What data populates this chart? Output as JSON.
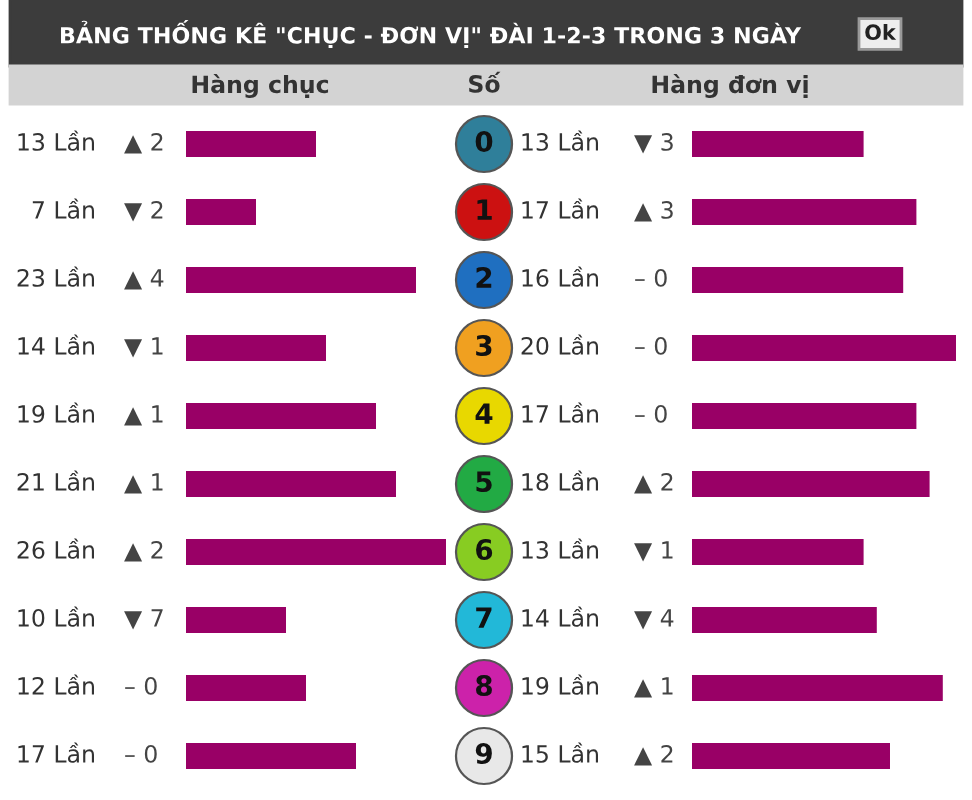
{
  "chart_data": [
    {
      "type": "bar",
      "orientation": "horizontal",
      "title": "BẢNG THỐNG KÊ \"CHỤC - ĐƠN VỊ\" ĐÀI 1-2-3 TRONG 3 NGÀY",
      "subtitle": "Hàng chục",
      "ylabel": "Số",
      "tick_labels": "y",
      "categories": [
        "0",
        "1",
        "2",
        "3",
        "4",
        "5",
        "6",
        "7",
        "8",
        "9"
      ],
      "values": [
        13,
        7,
        23,
        14,
        19,
        21,
        26,
        10,
        12,
        17
      ],
      "color": "#990066",
      "value_labels": [
        "13 Lần",
        "7 Lần",
        "23 Lần",
        "14 Lần",
        "19 Lần",
        "21 Lần",
        "26 Lần",
        "10 Lần",
        "12 Lần",
        "17 Lần"
      ],
      "annotations": [
        "▲ 2",
        "▼ 2",
        "▲ 4",
        "▼ 1",
        "▲ 1",
        "▲ 1",
        "▲ 2",
        "▼ 7",
        "– 0",
        "– 0",
        "Ok"
      ]
    },
    {
      "type": "bar",
      "orientation": "horizontal",
      "subtitle": "Hàng đơn vị",
      "tick_labels": false,
      "categories": [
        null,
        null,
        null,
        null,
        null,
        null,
        null,
        null,
        null,
        null
      ],
      "values": [
        13,
        17,
        16,
        20,
        17,
        18,
        13,
        14,
        19,
        15
      ],
      "color": "#990066",
      "value_labels": [
        "13 Lần",
        "17 Lần",
        "16 Lần",
        "20 Lần",
        "17 Lần",
        "18 Lần",
        "13 Lần",
        "14 Lần",
        "19 Lần",
        "15 Lần"
      ],
      "annotations": [
        "▼ 3",
        "▲ 3",
        "– 0",
        "– 0",
        "– 0",
        "▲ 2",
        "▼ 1",
        "▼ 4",
        "▲ 1",
        "▲ 2"
      ]
    }
  ]
}
